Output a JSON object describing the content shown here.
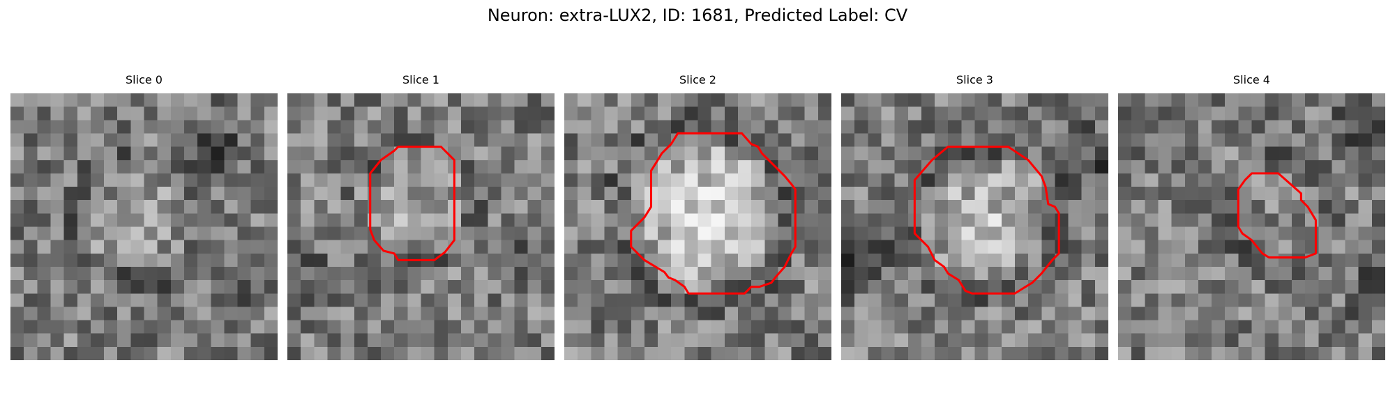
{
  "figure": {
    "title": "Neuron: extra-LUX2, ID: 1681, Predicted Label: CV"
  },
  "panels": [
    {
      "label": "Slice 0",
      "contour": null
    },
    {
      "label": "Slice 1",
      "contour": [
        [
          10,
          4
        ],
        [
          11.5,
          4
        ],
        [
          12.5,
          5
        ],
        [
          12.5,
          11
        ],
        [
          11.8,
          11.9
        ],
        [
          11,
          12.5
        ],
        [
          8.3,
          12.5
        ],
        [
          8,
          12
        ],
        [
          7.2,
          11.8
        ],
        [
          6.5,
          11
        ],
        [
          6.2,
          10.2
        ],
        [
          6.2,
          6
        ],
        [
          7,
          5
        ],
        [
          8,
          4.3
        ],
        [
          8.3,
          4
        ]
      ]
    },
    {
      "label": "Slice 2",
      "contour": [
        [
          10,
          3
        ],
        [
          13.3,
          3
        ],
        [
          14,
          3.8
        ],
        [
          14.5,
          4
        ],
        [
          14.8,
          4.5
        ],
        [
          15.3,
          5
        ],
        [
          15.8,
          5.5
        ],
        [
          16.5,
          6.2
        ],
        [
          17,
          6.8
        ],
        [
          17.3,
          7.2
        ],
        [
          17.3,
          11.5
        ],
        [
          17,
          12
        ],
        [
          16.5,
          13
        ],
        [
          15.8,
          13.8
        ],
        [
          15.5,
          14.2
        ],
        [
          14.6,
          14.5
        ],
        [
          14,
          14.5
        ],
        [
          13.5,
          15
        ],
        [
          9.3,
          15
        ],
        [
          9,
          14.5
        ],
        [
          8.3,
          14
        ],
        [
          7.8,
          13.8
        ],
        [
          7.5,
          13.4
        ],
        [
          6,
          12.5
        ],
        [
          5.5,
          12
        ],
        [
          5,
          11.5
        ],
        [
          5,
          10.3
        ],
        [
          6,
          9.3
        ],
        [
          6.5,
          8.5
        ],
        [
          6.5,
          7
        ],
        [
          6.5,
          5.8
        ],
        [
          7,
          5
        ],
        [
          7.3,
          4.5
        ],
        [
          8,
          3.8
        ],
        [
          8.5,
          3
        ],
        [
          9,
          3
        ]
      ]
    },
    {
      "label": "Slice 3",
      "contour": [
        [
          10,
          4
        ],
        [
          12.5,
          4
        ],
        [
          14,
          5
        ],
        [
          15,
          6.2
        ],
        [
          15.3,
          7
        ],
        [
          15.5,
          8.3
        ],
        [
          16,
          8.5
        ],
        [
          16.3,
          9
        ],
        [
          16.3,
          12
        ],
        [
          15.8,
          12.5
        ],
        [
          15,
          13.5
        ],
        [
          14.3,
          14.2
        ],
        [
          13.8,
          14.5
        ],
        [
          13,
          15
        ],
        [
          9.8,
          15
        ],
        [
          9.3,
          14.8
        ],
        [
          8.8,
          14
        ],
        [
          8,
          13.5
        ],
        [
          7.7,
          13
        ],
        [
          7,
          12.5
        ],
        [
          6.5,
          11.5
        ],
        [
          5.5,
          10.5
        ],
        [
          5.5,
          8.2
        ],
        [
          5.5,
          6.5
        ],
        [
          6.8,
          5
        ],
        [
          8,
          4
        ],
        [
          9,
          4
        ]
      ]
    },
    {
      "label": "Slice 4",
      "contour": [
        [
          10,
          6
        ],
        [
          12,
          6
        ],
        [
          13.7,
          7.5
        ],
        [
          13.7,
          8
        ],
        [
          14.2,
          8.5
        ],
        [
          14.5,
          9
        ],
        [
          14.8,
          9.5
        ],
        [
          14.8,
          12
        ],
        [
          14,
          12.3
        ],
        [
          11.3,
          12.3
        ],
        [
          10.8,
          12
        ],
        [
          10,
          11
        ],
        [
          9.3,
          10.5
        ],
        [
          9,
          10
        ],
        [
          9,
          7.2
        ],
        [
          9.5,
          6.5
        ],
        [
          10,
          6
        ]
      ]
    }
  ],
  "colors": {
    "contour": "#ff0000"
  }
}
